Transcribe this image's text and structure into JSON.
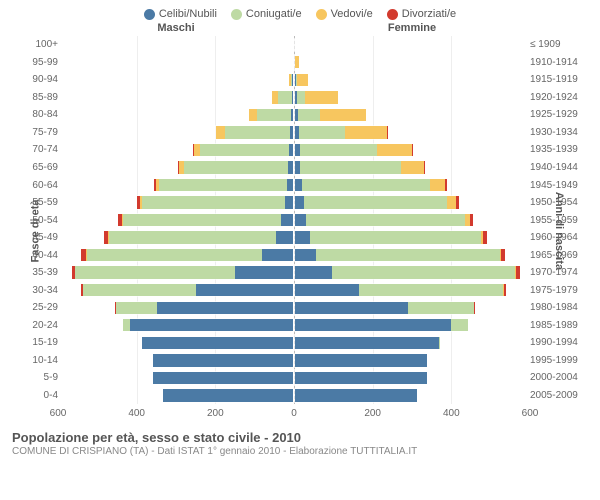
{
  "legend": [
    {
      "label": "Celibi/Nubili",
      "color": "#4b7aa5"
    },
    {
      "label": "Coniugati/e",
      "color": "#bedaa4"
    },
    {
      "label": "Vedovi/e",
      "color": "#f7c65f"
    },
    {
      "label": "Divorziati/e",
      "color": "#d23a2e"
    }
  ],
  "headers": {
    "male": "Maschi",
    "female": "Femmine"
  },
  "axis_left": "Fasce di età",
  "axis_right": "Anni di nascita",
  "xticks": [
    600,
    400,
    200,
    0,
    200,
    400,
    600
  ],
  "xmax": 600,
  "title": "Popolazione per età, sesso e stato civile - 2010",
  "subtitle": "COMUNE DI CRISPIANO (TA) - Dati ISTAT 1° gennaio 2010 - Elaborazione TUTTITALIA.IT",
  "rows": [
    {
      "age": "100+",
      "birth": "≤ 1909",
      "m": [
        0,
        0,
        1,
        0
      ],
      "f": [
        0,
        0,
        2,
        0
      ]
    },
    {
      "age": "95-99",
      "birth": "1910-1914",
      "m": [
        0,
        0,
        3,
        0
      ],
      "f": [
        0,
        0,
        15,
        0
      ]
    },
    {
      "age": "90-94",
      "birth": "1915-1919",
      "m": [
        2,
        5,
        8,
        0
      ],
      "f": [
        3,
        2,
        32,
        0
      ]
    },
    {
      "age": "85-89",
      "birth": "1920-1924",
      "m": [
        3,
        38,
        18,
        0
      ],
      "f": [
        6,
        20,
        88,
        0
      ]
    },
    {
      "age": "80-84",
      "birth": "1925-1929",
      "m": [
        6,
        90,
        22,
        0
      ],
      "f": [
        8,
        58,
        120,
        0
      ]
    },
    {
      "age": "75-79",
      "birth": "1930-1934",
      "m": [
        8,
        170,
        22,
        0
      ],
      "f": [
        10,
        120,
        110,
        2
      ]
    },
    {
      "age": "70-74",
      "birth": "1935-1939",
      "m": [
        10,
        230,
        18,
        2
      ],
      "f": [
        12,
        200,
        90,
        3
      ]
    },
    {
      "age": "65-69",
      "birth": "1940-1944",
      "m": [
        12,
        270,
        12,
        3
      ],
      "f": [
        14,
        260,
        58,
        4
      ]
    },
    {
      "age": "60-64",
      "birth": "1945-1949",
      "m": [
        15,
        330,
        8,
        5
      ],
      "f": [
        18,
        330,
        38,
        6
      ]
    },
    {
      "age": "55-59",
      "birth": "1950-1954",
      "m": [
        20,
        370,
        5,
        6
      ],
      "f": [
        22,
        370,
        22,
        7
      ]
    },
    {
      "age": "50-54",
      "birth": "1955-1959",
      "m": [
        30,
        408,
        3,
        8
      ],
      "f": [
        28,
        410,
        12,
        8
      ]
    },
    {
      "age": "45-49",
      "birth": "1960-1964",
      "m": [
        45,
        428,
        2,
        10
      ],
      "f": [
        38,
        440,
        6,
        10
      ]
    },
    {
      "age": "40-44",
      "birth": "1965-1969",
      "m": [
        80,
        450,
        1,
        12
      ],
      "f": [
        55,
        470,
        3,
        12
      ]
    },
    {
      "age": "35-39",
      "birth": "1970-1974",
      "m": [
        150,
        410,
        0,
        8
      ],
      "f": [
        95,
        470,
        2,
        10
      ]
    },
    {
      "age": "30-34",
      "birth": "1975-1979",
      "m": [
        250,
        290,
        0,
        5
      ],
      "f": [
        165,
        370,
        1,
        6
      ]
    },
    {
      "age": "25-29",
      "birth": "1980-1984",
      "m": [
        350,
        105,
        0,
        2
      ],
      "f": [
        290,
        170,
        0,
        3
      ]
    },
    {
      "age": "20-24",
      "birth": "1985-1989",
      "m": [
        420,
        18,
        0,
        0
      ],
      "f": [
        400,
        45,
        0,
        0
      ]
    },
    {
      "age": "15-19",
      "birth": "1990-1994",
      "m": [
        390,
        0,
        0,
        0
      ],
      "f": [
        370,
        2,
        0,
        0
      ]
    },
    {
      "age": "10-14",
      "birth": "1995-1999",
      "m": [
        360,
        0,
        0,
        0
      ],
      "f": [
        340,
        0,
        0,
        0
      ]
    },
    {
      "age": "5-9",
      "birth": "2000-2004",
      "m": [
        360,
        0,
        0,
        0
      ],
      "f": [
        340,
        0,
        0,
        0
      ]
    },
    {
      "age": "0-4",
      "birth": "2005-2009",
      "m": [
        335,
        0,
        0,
        0
      ],
      "f": [
        315,
        0,
        0,
        0
      ]
    }
  ],
  "background_color": "#ffffff",
  "grid_color": "#eeeeee",
  "centerline_color": "#bbbbbb"
}
